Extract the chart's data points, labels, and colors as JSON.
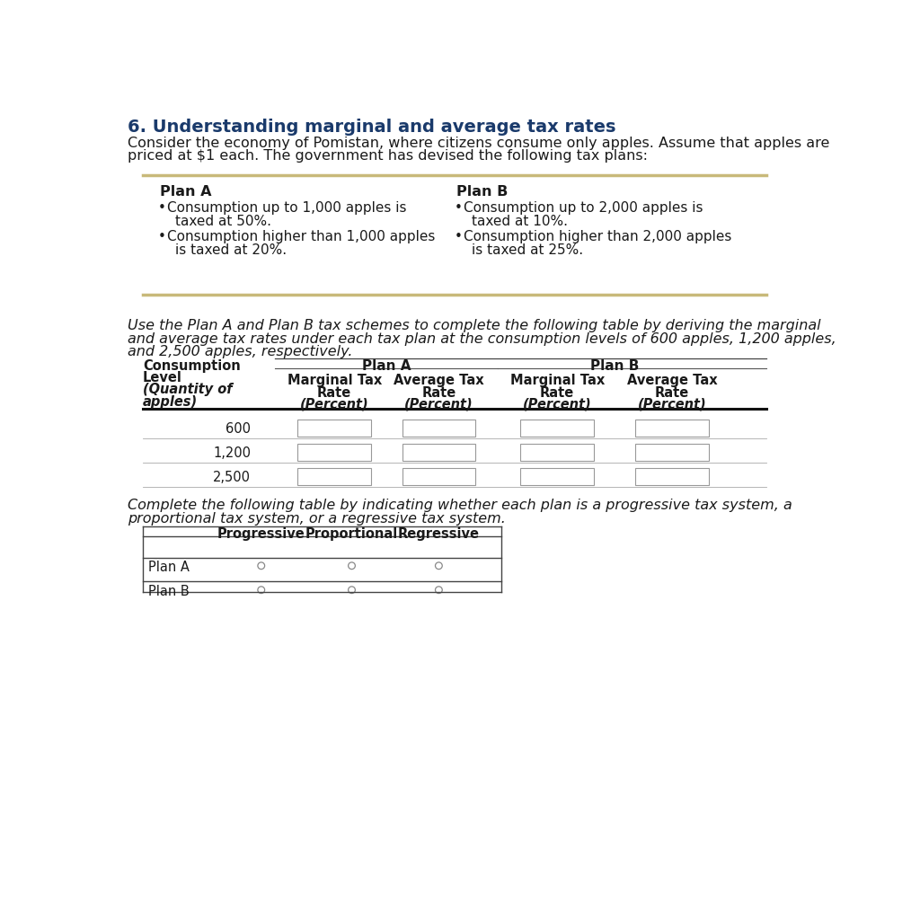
{
  "title": "6. Understanding marginal and average tax rates",
  "title_color": "#1a3a6b",
  "bg_color": "#ffffff",
  "text_color": "#1a1a1a",
  "plan_box_color": "#c8b97a",
  "plan_a_title": "Plan A",
  "plan_b_title": "Plan B",
  "plan_a_bullet1_line1": "Consumption up to 1,000 apples is",
  "plan_a_bullet1_line2": "taxed at 50%.",
  "plan_a_bullet2_line1": "Consumption higher than 1,000 apples",
  "plan_a_bullet2_line2": "is taxed at 20%.",
  "plan_b_bullet1_line1": "Consumption up to 2,000 apples is",
  "plan_b_bullet1_line2": "taxed at 10%.",
  "plan_b_bullet2_line1": "Consumption higher than 2,000 apples",
  "plan_b_bullet2_line2": "is taxed at 25%.",
  "intro_line1": "Consider the economy of Pomistan, where citizens consume only apples. Assume that apples are",
  "intro_line2": "priced at $1 each. The government has devised the following tax plans:",
  "instr1_line1": "Use the Plan A and Plan B tax schemes to complete the following table by deriving the marginal",
  "instr1_line2": "and average tax rates under each tax plan at the consumption levels of 600 apples, 1,200 apples,",
  "instr1_line3": "and 2,500 apples, respectively.",
  "instr2_line1": "Complete the following table by indicating whether each plan is a progressive tax system, a",
  "instr2_line2": "proportional tax system, or a regressive tax system.",
  "table1_rows": [
    "600",
    "1,200",
    "2,500"
  ],
  "table2_rows": [
    "Plan A",
    "Plan B"
  ]
}
